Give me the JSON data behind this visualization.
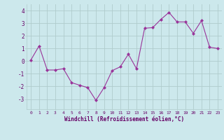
{
  "x": [
    0,
    1,
    2,
    3,
    4,
    5,
    6,
    7,
    8,
    9,
    10,
    11,
    12,
    13,
    14,
    15,
    16,
    17,
    18,
    19,
    20,
    21,
    22,
    23
  ],
  "y": [
    0.1,
    1.2,
    -0.7,
    -0.7,
    -0.6,
    -1.7,
    -1.9,
    -2.1,
    -3.1,
    -2.1,
    -0.75,
    -0.45,
    0.55,
    -0.6,
    2.6,
    2.65,
    3.3,
    3.85,
    3.1,
    3.1,
    2.2,
    3.2,
    1.1,
    1.0
  ],
  "line_color": "#993399",
  "marker": "D",
  "marker_size": 2.0,
  "bg_color": "#cce8ec",
  "grid_color": "#b0cccc",
  "xlabel": "Windchill (Refroidissement éolien,°C)",
  "xlabel_color": "#660066",
  "tick_color": "#660066",
  "ylim": [
    -3.8,
    4.5
  ],
  "xlim": [
    -0.5,
    23.5
  ],
  "yticks": [
    -3,
    -2,
    -1,
    0,
    1,
    2,
    3,
    4
  ],
  "xticks": [
    0,
    1,
    2,
    3,
    4,
    5,
    6,
    7,
    8,
    9,
    10,
    11,
    12,
    13,
    14,
    15,
    16,
    17,
    18,
    19,
    20,
    21,
    22,
    23
  ]
}
